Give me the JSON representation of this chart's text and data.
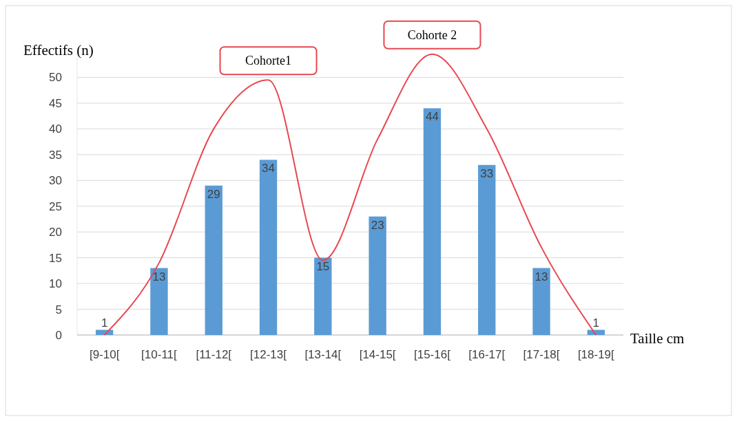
{
  "chart_data": {
    "type": "bar",
    "xlabel": "Taille cm",
    "ylabel": "Effectifs (n)",
    "categories": [
      "[9-10[",
      "[10-11[",
      "[11-12[",
      "[12-13[",
      "[13-14[",
      "[14-15[",
      "[15-16[",
      "[16-17[",
      "[17-18[",
      "[18-19["
    ],
    "series": [
      {
        "color": "#5b9bd5",
        "values": [
          1,
          13,
          29,
          34,
          15,
          23,
          44,
          33,
          13,
          1
        ],
        "value_labels": [
          "1",
          "13",
          "29",
          "34",
          "15",
          "23",
          "44",
          "33",
          "13",
          "1"
        ]
      },
      {
        "type": "line",
        "color": "#e8474f",
        "values": [
          0,
          14,
          40,
          49.5,
          14.5,
          38,
          54.5,
          40,
          17,
          0
        ]
      }
    ],
    "ylim": [
      0,
      55
    ],
    "yticks": [
      0,
      5,
      10,
      15,
      20,
      25,
      30,
      35,
      40,
      45,
      50
    ],
    "grid": "y",
    "marker": "none",
    "line_style": "solid",
    "annotations": [
      {
        "text": "Cohorte1",
        "x": "[12-13[",
        "y": 49.5
      },
      {
        "text": "Cohorte 2",
        "x": "[15-16[",
        "y": 54.5
      }
    ]
  }
}
